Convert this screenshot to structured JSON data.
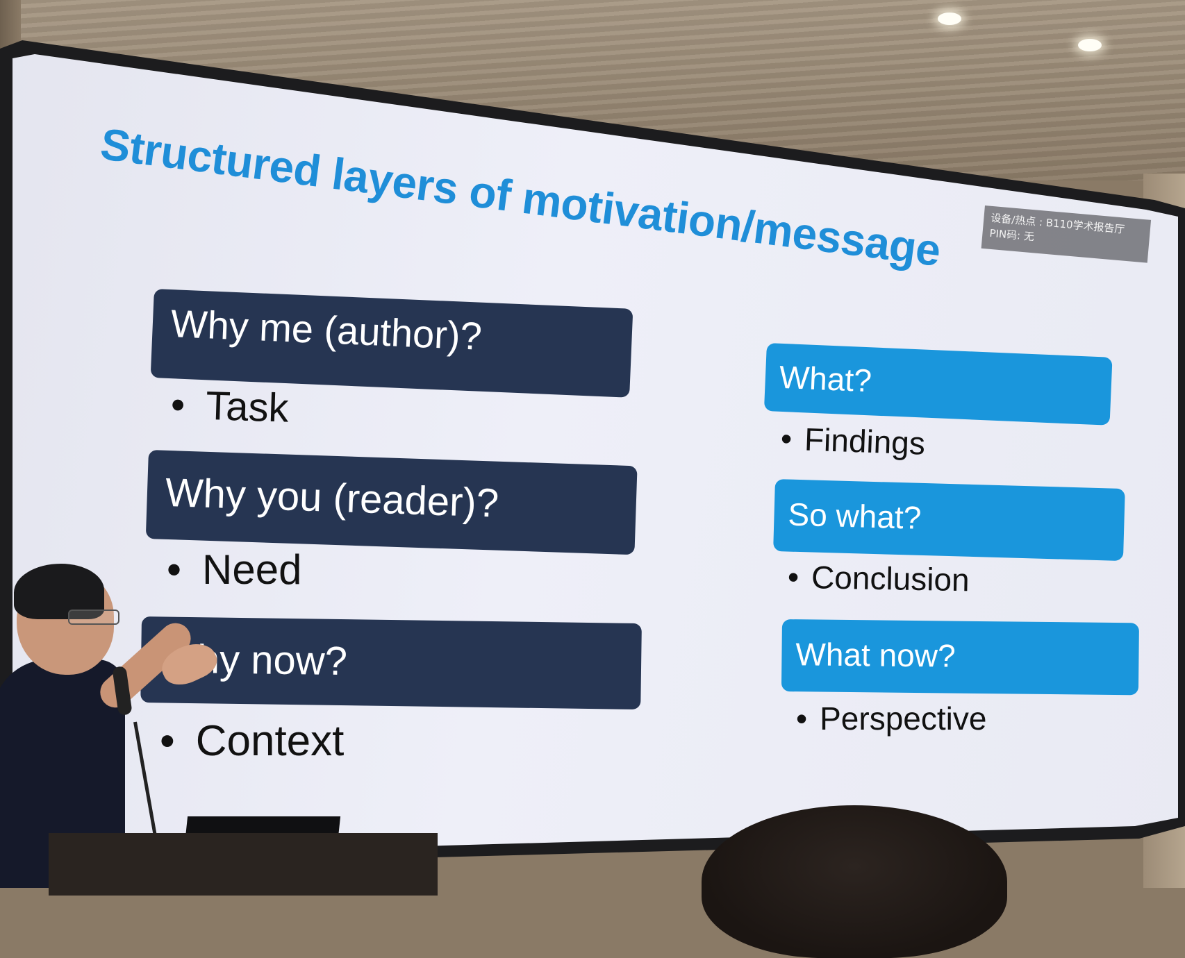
{
  "slide": {
    "title": "Structured layers of motivation/message",
    "overlay": {
      "line1": "设备/热点 : B110学术报告厅",
      "line2": "PIN码: 无"
    },
    "left_column": [
      {
        "heading": "Why me (author)?",
        "bullet": "Task"
      },
      {
        "heading": "Why you (reader)?",
        "bullet": "Need"
      },
      {
        "heading": "Why now?",
        "bullet": "Context"
      }
    ],
    "right_column": [
      {
        "heading": "What?",
        "bullet": "Findings"
      },
      {
        "heading": "So what?",
        "bullet": "Conclusion"
      },
      {
        "heading": "What now?",
        "bullet": "Perspective"
      }
    ],
    "colors": {
      "title": "#1f8ed8",
      "dark_box": "#263552",
      "blue_box": "#1a96dc"
    }
  }
}
